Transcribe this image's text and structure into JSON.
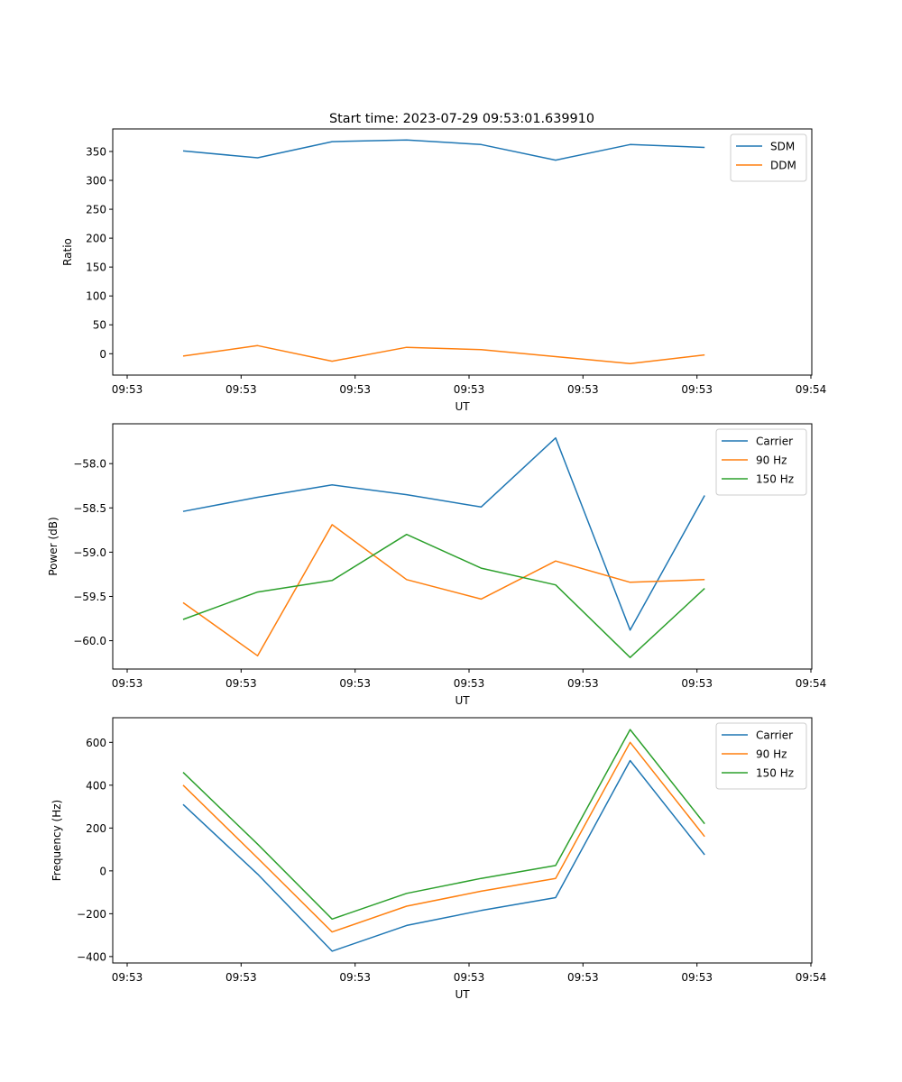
{
  "figure_title": "Start time: 2023-07-29 09:53:01.639910",
  "chart_data": [
    {
      "type": "line",
      "title": "Start time: 2023-07-29 09:53:01.639910",
      "xlabel": "UT",
      "ylabel": "Ratio",
      "x_tick_labels": [
        "09:53",
        "09:53",
        "09:53",
        "09:53",
        "09:53",
        "09:53",
        "09:54"
      ],
      "x_index": [
        0,
        1,
        2,
        3,
        4,
        5,
        6,
        7
      ],
      "y_ticks": [
        0,
        50,
        100,
        150,
        200,
        250,
        300,
        350
      ],
      "ylim": [
        -37,
        389
      ],
      "legend": "top-right",
      "grid": false,
      "series": [
        {
          "name": "SDM",
          "color": "#1f77b4",
          "values": [
            351,
            339,
            367,
            370,
            362,
            335,
            362,
            357
          ]
        },
        {
          "name": "DDM",
          "color": "#ff7f0e",
          "values": [
            -4,
            14,
            -13,
            11,
            7,
            -5,
            -17,
            -2
          ]
        }
      ]
    },
    {
      "type": "line",
      "title": "",
      "xlabel": "UT",
      "ylabel": "Power (dB)",
      "x_tick_labels": [
        "09:53",
        "09:53",
        "09:53",
        "09:53",
        "09:53",
        "09:53",
        "09:54"
      ],
      "x_index": [
        0,
        1,
        2,
        3,
        4,
        5,
        6,
        7
      ],
      "y_ticks": [
        -60.0,
        -59.5,
        -59.0,
        -58.5,
        -58.0
      ],
      "y_tick_labels": [
        "−60.0",
        "−59.5",
        "−59.0",
        "−58.5",
        "−58.0"
      ],
      "ylim": [
        -60.32,
        -57.55
      ],
      "legend": "top-right",
      "grid": false,
      "series": [
        {
          "name": "Carrier",
          "color": "#1f77b4",
          "values": [
            -58.54,
            -58.38,
            -58.24,
            -58.35,
            -58.49,
            -57.71,
            -59.88,
            -58.36
          ]
        },
        {
          "name": "90 Hz",
          "color": "#ff7f0e",
          "values": [
            -59.57,
            -60.17,
            -58.69,
            -59.31,
            -59.53,
            -59.1,
            -59.34,
            -59.31
          ]
        },
        {
          "name": "150 Hz",
          "color": "#2ca02c",
          "values": [
            -59.76,
            -59.45,
            -59.32,
            -58.8,
            -59.18,
            -59.37,
            -60.19,
            -59.41
          ]
        }
      ]
    },
    {
      "type": "line",
      "title": "",
      "xlabel": "UT",
      "ylabel": "Frequency (Hz)",
      "x_tick_labels": [
        "09:53",
        "09:53",
        "09:53",
        "09:53",
        "09:53",
        "09:53",
        "09:54"
      ],
      "x_index": [
        0,
        1,
        2,
        3,
        4,
        5,
        6,
        7
      ],
      "y_ticks": [
        -400,
        -200,
        0,
        200,
        400,
        600
      ],
      "y_tick_labels": [
        "−400",
        "−200",
        "0",
        "200",
        "400",
        "600"
      ],
      "ylim": [
        -430,
        715
      ],
      "legend": "top-right",
      "grid": false,
      "series": [
        {
          "name": "Carrier",
          "color": "#1f77b4",
          "values": [
            310,
            -15,
            -375,
            -255,
            -185,
            -125,
            515,
            75
          ]
        },
        {
          "name": "90 Hz",
          "color": "#ff7f0e",
          "values": [
            400,
            60,
            -285,
            -165,
            -95,
            -35,
            600,
            160
          ]
        },
        {
          "name": "150 Hz",
          "color": "#2ca02c",
          "values": [
            460,
            125,
            -225,
            -105,
            -35,
            25,
            660,
            220
          ]
        }
      ]
    }
  ]
}
